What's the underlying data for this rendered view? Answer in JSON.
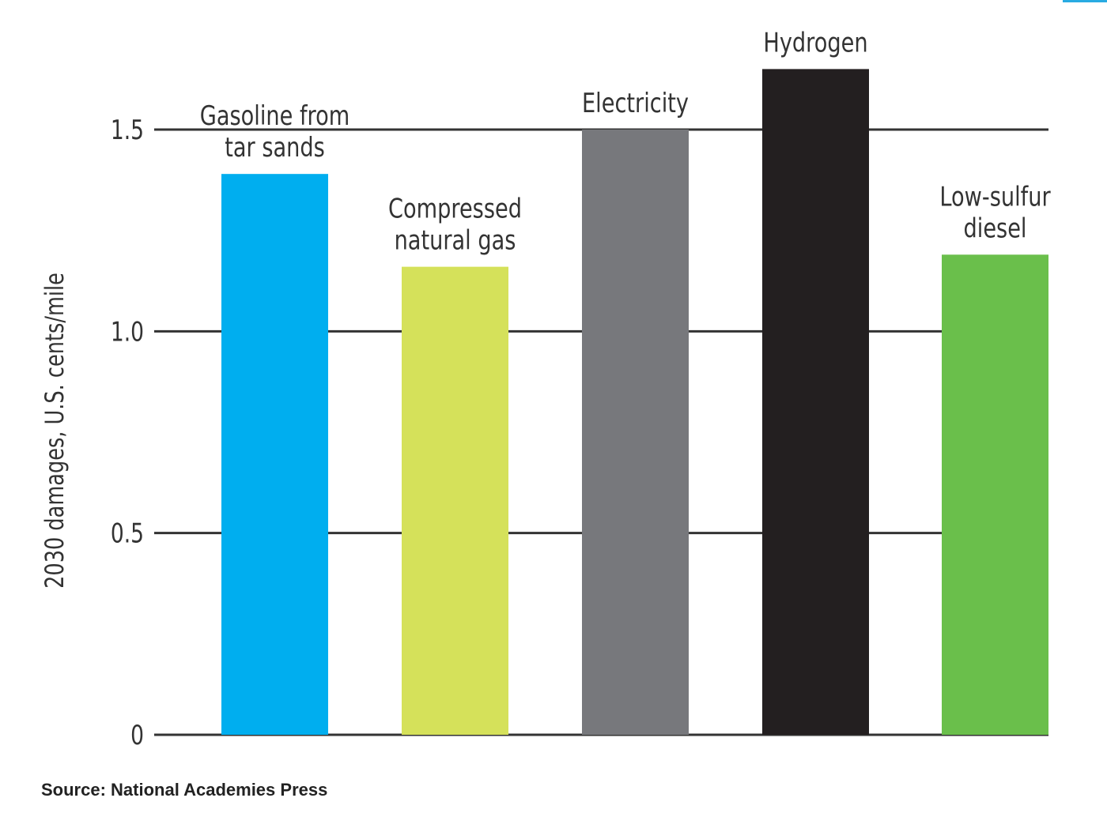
{
  "chart_data": {
    "type": "bar",
    "title": "",
    "xlabel": "",
    "ylabel": "2030 damages, U.S. cents/mile",
    "ylim": [
      0,
      1.7
    ],
    "yticks": [
      {
        "value": 0,
        "label": "0"
      },
      {
        "value": 0.5,
        "label": "0.5"
      },
      {
        "value": 1.0,
        "label": "1.0"
      },
      {
        "value": 1.5,
        "label": "1.5"
      }
    ],
    "grid": true,
    "legend": "none",
    "bars": [
      {
        "label_lines": [
          "Gasoline from",
          "tar sands"
        ],
        "value": 1.39,
        "color": "#00aeef"
      },
      {
        "label_lines": [
          "Compressed",
          "natural gas"
        ],
        "value": 1.16,
        "color": "#d5e15a"
      },
      {
        "label_lines": [
          "Electricity"
        ],
        "value": 1.5,
        "color": "#77787c"
      },
      {
        "label_lines": [
          "Hydrogen"
        ],
        "value": 1.65,
        "color": "#231f20"
      },
      {
        "label_lines": [
          "Low-sulfur",
          "diesel"
        ],
        "value": 1.19,
        "color": "#6abf4b"
      }
    ]
  },
  "source": "Source: National Academies Press",
  "colors": {
    "gridline": "#333333",
    "text": "#333333",
    "accent": "#29abe2"
  }
}
